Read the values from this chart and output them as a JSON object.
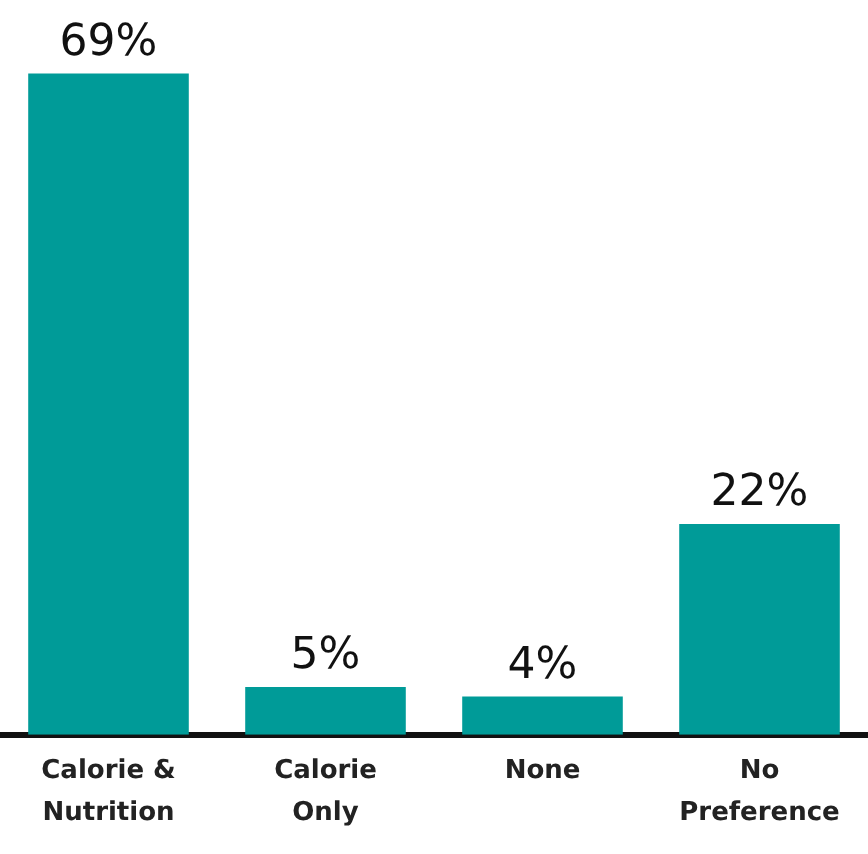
{
  "chart_data": {
    "type": "bar",
    "categories": [
      "Calorie & Nutrition",
      "Calorie Only",
      "None",
      "No Preference"
    ],
    "values": [
      69,
      5,
      4,
      22
    ],
    "value_labels": [
      "69%",
      "5%",
      "4%",
      "22%"
    ],
    "color": "#009b98",
    "grid": false,
    "legend": false,
    "tick_labels": "x"
  }
}
